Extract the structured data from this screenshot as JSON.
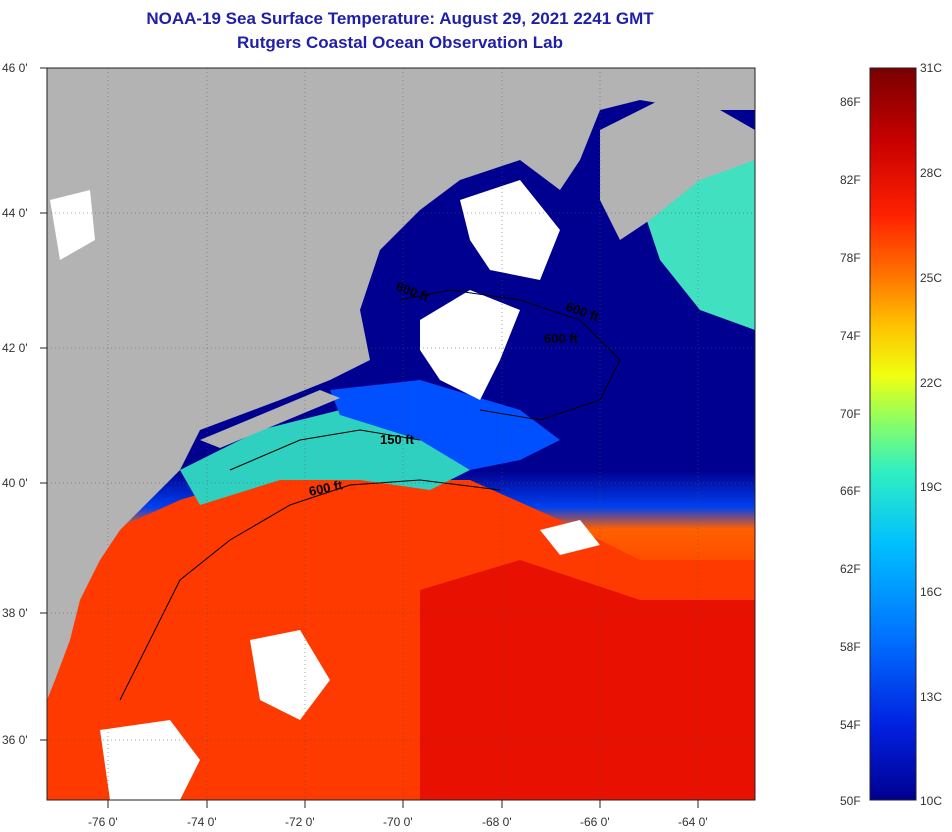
{
  "title": {
    "line1": "NOAA-19 Sea Surface Temperature:  August 29, 2021 2241 GMT",
    "line2": "Rutgers Coastal Ocean Observation Lab"
  },
  "map": {
    "lat_labels": [
      "46 0'",
      "44 0'",
      "42 0'",
      "40 0'",
      "38 0'",
      "36 0'"
    ],
    "lon_labels": [
      "-76 0'",
      "-74 0'",
      "-72 0'",
      "-70 0'",
      "-68 0'",
      "-66 0'",
      "-64 0'"
    ],
    "contour_labels": [
      "600 ft",
      "600 ft",
      "600 ft",
      "150 ft",
      "600 ft"
    ]
  },
  "colorbar": {
    "celsius": [
      "31C",
      "28C",
      "25C",
      "22C",
      "19C",
      "16C",
      "13C",
      "10C"
    ],
    "fahrenheit": [
      "86F",
      "82F",
      "78F",
      "74F",
      "70F",
      "66F",
      "62F",
      "58F",
      "54F",
      "50F"
    ],
    "colors": [
      "#780000",
      "#c80000",
      "#ff2000",
      "#ff7000",
      "#ffc000",
      "#f0ff10",
      "#90ff60",
      "#30f0c0",
      "#00c0ff",
      "#0070ff",
      "#0020e0",
      "#000090"
    ]
  },
  "colors": {
    "land": "#b3b3b3",
    "cloud": "#ffffff",
    "title": "#1f1fa8"
  }
}
